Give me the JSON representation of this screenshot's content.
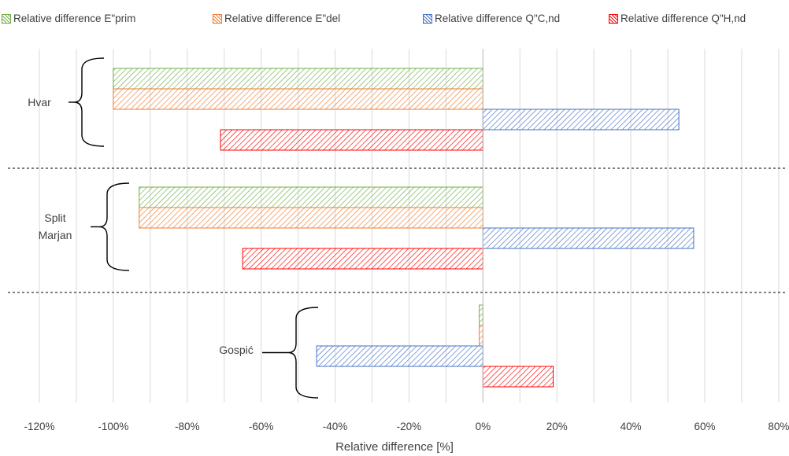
{
  "chart_data": {
    "type": "bar",
    "orientation": "horizontal",
    "categories": [
      "Hvar",
      "Split Marjan",
      "Gospić"
    ],
    "series": [
      {
        "name": "Relative difference E\"prim",
        "color": "#70AD47",
        "values": [
          -100,
          -93,
          -1
        ]
      },
      {
        "name": "Relative difference E\"del",
        "color": "#ED7D31",
        "values": [
          -100,
          -93,
          -1
        ]
      },
      {
        "name": "Relative difference Q\"C,nd",
        "color": "#4472C4",
        "values": [
          53,
          57,
          -45
        ]
      },
      {
        "name": "Relative difference Q\"H,nd",
        "color": "#FF0000",
        "values": [
          -71,
          -65,
          19
        ]
      }
    ],
    "xticks": [
      "-120%",
      "-100%",
      "-80%",
      "-60%",
      "-40%",
      "-20%",
      "0%",
      "20%",
      "40%",
      "60%",
      "80%"
    ],
    "xlim": [
      -120,
      80
    ],
    "xlabel": "Relative difference [%]",
    "ylabel": "",
    "title": "",
    "grid": true,
    "legend_position": "top",
    "bar_pattern": "diagonal-hatch"
  }
}
